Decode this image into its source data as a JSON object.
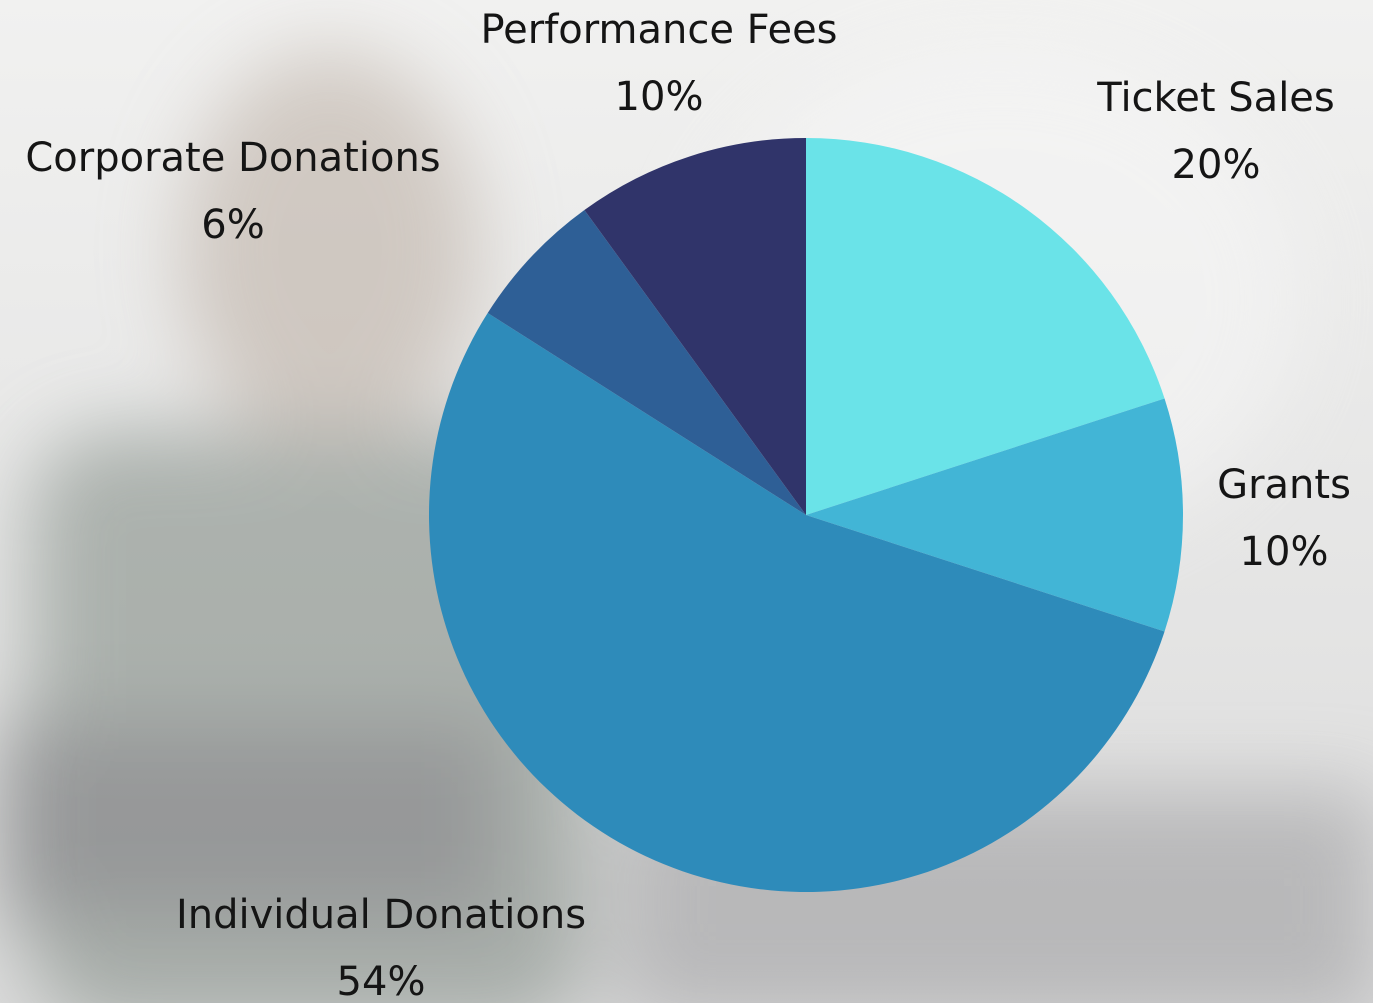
{
  "chart_data": {
    "type": "pie",
    "categories": [
      "Ticket Sales",
      "Grants",
      "Individual Donations",
      "Corporate Donations",
      "Performance Fees"
    ],
    "values": [
      20,
      10,
      54,
      6,
      10
    ],
    "value_labels": [
      "20%",
      "10%",
      "54%",
      "6%",
      "10%"
    ],
    "colors": [
      "#6ae3e8",
      "#42b5d6",
      "#2e8bba",
      "#2e5f96",
      "#30346a"
    ]
  }
}
